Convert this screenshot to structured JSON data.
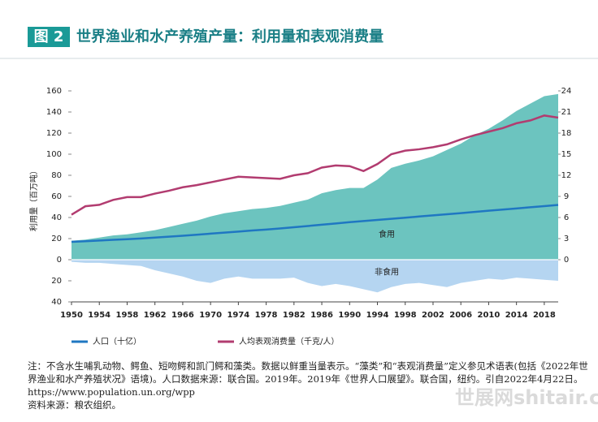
{
  "chart_data": {
    "type": "area-line",
    "figure_label": "图 2",
    "title": "世界渔业和水产养殖产量：利用量和表观消费量",
    "ylabel": "利用量（百万吨）",
    "x": [
      1950,
      1952,
      1954,
      1956,
      1958,
      1960,
      1962,
      1964,
      1966,
      1968,
      1970,
      1972,
      1974,
      1976,
      1978,
      1980,
      1982,
      1984,
      1986,
      1988,
      1990,
      1992,
      1994,
      1996,
      1998,
      2000,
      2002,
      2004,
      2006,
      2008,
      2010,
      2012,
      2014,
      2016,
      2018,
      2020
    ],
    "xlim": [
      1950,
      2020
    ],
    "xticks": [
      1950,
      1954,
      1958,
      1962,
      1966,
      1970,
      1974,
      1978,
      1982,
      1986,
      1990,
      1994,
      1998,
      2002,
      2006,
      2010,
      2014,
      2018
    ],
    "ylim": [
      -40,
      160
    ],
    "yticks": [
      {
        "value": -40,
        "label": "40"
      },
      {
        "value": -20,
        "label": "20"
      },
      0,
      20,
      40,
      60,
      80,
      100,
      120,
      140,
      160
    ],
    "y2lim": [
      -6,
      24
    ],
    "y2ticks": [
      0,
      3,
      6,
      9,
      12,
      15,
      18,
      21,
      24
    ],
    "grid": false,
    "series": [
      {
        "name": "食用",
        "kind": "area",
        "color": "#6cc4bf",
        "values": [
          18,
          19,
          21,
          23,
          24,
          26,
          28,
          31,
          34,
          37,
          41,
          44,
          46,
          48,
          49,
          51,
          54,
          57,
          63,
          66,
          68,
          68,
          76,
          87,
          91,
          94,
          98,
          104,
          110,
          118,
          124,
          132,
          141,
          148,
          155,
          157
        ]
      },
      {
        "name": "非食用",
        "kind": "area",
        "color": "#b5d5f1",
        "values": [
          -2,
          -3,
          -3,
          -4,
          -5,
          -6,
          -10,
          -13,
          -16,
          -20,
          -22,
          -18,
          -16,
          -18,
          -18,
          -18,
          -17,
          -22,
          -25,
          -23,
          -25,
          -28,
          -31,
          -26,
          -23,
          -22,
          -24,
          -26,
          -22,
          -20,
          -18,
          -19,
          -17,
          -18,
          -19,
          -20
        ]
      },
      {
        "name": "人口（十亿）",
        "kind": "line",
        "axis": "y2",
        "color": "#1f77c2",
        "values": [
          2.54,
          2.63,
          2.72,
          2.82,
          2.92,
          3.02,
          3.14,
          3.27,
          3.41,
          3.55,
          3.7,
          3.85,
          4.0,
          4.15,
          4.29,
          4.44,
          4.62,
          4.79,
          4.97,
          5.15,
          5.33,
          5.49,
          5.65,
          5.81,
          5.97,
          6.14,
          6.3,
          6.46,
          6.62,
          6.79,
          6.96,
          7.13,
          7.29,
          7.45,
          7.61,
          7.79
        ]
      },
      {
        "name": "人均表观消费量（千克/人）",
        "kind": "line",
        "axis": "y2",
        "color": "#b23c70",
        "values": [
          6.4,
          7.6,
          7.8,
          8.5,
          8.9,
          8.9,
          9.4,
          9.8,
          10.3,
          10.6,
          11.0,
          11.4,
          11.8,
          11.7,
          11.6,
          11.5,
          12.0,
          12.3,
          13.1,
          13.4,
          13.3,
          12.6,
          13.6,
          15.0,
          15.5,
          15.7,
          16.0,
          16.4,
          17.1,
          17.7,
          18.2,
          18.7,
          19.4,
          19.8,
          20.5,
          20.2
        ]
      }
    ],
    "note": "注：不含水生哺乳动物、鳄鱼、短吻鳄和凯门鳄和藻类。数据以鲜重当量表示。“藻类”和“表观消费量”定义参见术语表(包括《2022年世界渔业和水产养殖状况》语境)。人口数据来源：联合国。2019年。2019年《世界人口展望》。联合国，纽约。引自2022年4月22日。https://www.population.un.org/wpp",
    "source": "资料来源：粮农组织。",
    "watermark": "世展网shitair.com"
  }
}
